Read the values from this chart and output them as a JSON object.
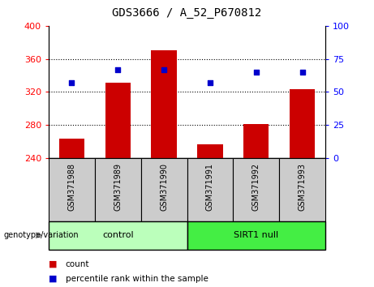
{
  "title": "GDS3666 / A_52_P670812",
  "categories": [
    "GSM371988",
    "GSM371989",
    "GSM371990",
    "GSM371991",
    "GSM371992",
    "GSM371993"
  ],
  "bar_values": [
    263,
    331,
    370,
    256,
    281,
    323
  ],
  "percentile_values": [
    57,
    67,
    67,
    57,
    65,
    65
  ],
  "ylim_left": [
    240,
    400
  ],
  "ylim_right": [
    0,
    100
  ],
  "yticks_left": [
    240,
    280,
    320,
    360,
    400
  ],
  "yticks_right": [
    0,
    25,
    50,
    75,
    100
  ],
  "bar_color": "#cc0000",
  "dot_color": "#0000cc",
  "group_defs": [
    {
      "start": 0,
      "end": 2,
      "label": "control",
      "color": "#bbffbb"
    },
    {
      "start": 3,
      "end": 5,
      "label": "SIRT1 null",
      "color": "#44ee44"
    }
  ],
  "tick_area_color": "#cccccc",
  "genotype_label": "genotype/variation",
  "legend_count_label": "count",
  "legend_pct_label": "percentile rank within the sample",
  "title_fontsize": 10,
  "axis_fontsize": 8,
  "tick_fontsize": 7,
  "label_fontsize": 8
}
